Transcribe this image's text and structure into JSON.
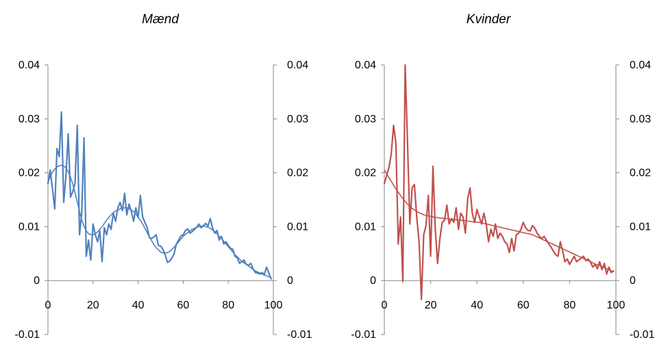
{
  "chart_data": [
    {
      "type": "line",
      "title": "Mænd",
      "xlabel": "",
      "ylabel": "",
      "xlim": [
        0,
        100
      ],
      "ylim": [
        -0.01,
        0.04
      ],
      "x_ticks": [
        "0",
        "20",
        "40",
        "60",
        "80",
        "100"
      ],
      "y_ticks": [
        "-0.01",
        "0",
        "0.01",
        "0.02",
        "0.03",
        "0.04"
      ],
      "secondary_y_ticks": [
        "-0.01",
        "0",
        "0.01",
        "0.02",
        "0.03",
        "0.04"
      ],
      "grid": false,
      "color": "#4F81BD",
      "series": [
        {
          "x": [
            0,
            1,
            2,
            3,
            4,
            5,
            6,
            7,
            8,
            9,
            10,
            11,
            12,
            13,
            14,
            15,
            16,
            17,
            18,
            19,
            20,
            21,
            22,
            23,
            24,
            25,
            26,
            27,
            28,
            29,
            30,
            31,
            32,
            33,
            34,
            35,
            36,
            37,
            38,
            39,
            40,
            41,
            42,
            43,
            44,
            45,
            46,
            47,
            48,
            49,
            50,
            51,
            52,
            53,
            54,
            55,
            56,
            57,
            58,
            59,
            60,
            61,
            62,
            63,
            64,
            65,
            66,
            67,
            68,
            69,
            70,
            71,
            72,
            73,
            74,
            75,
            76,
            77,
            78,
            79,
            80,
            81,
            82,
            83,
            84,
            85,
            86,
            87,
            88,
            89,
            90,
            91,
            92,
            93,
            94,
            95,
            96,
            97,
            98,
            99
          ],
          "values": [
            0.018,
            0.0205,
            0.017,
            0.0133,
            0.0245,
            0.023,
            0.0313,
            0.0145,
            0.0195,
            0.0272,
            0.0155,
            0.0165,
            0.018,
            0.0288,
            0.0085,
            0.0125,
            0.0265,
            0.0045,
            0.0075,
            0.0038,
            0.0105,
            0.0085,
            0.0072,
            0.0092,
            0.0035,
            0.0098,
            0.0085,
            0.0105,
            0.0095,
            0.0125,
            0.011,
            0.0135,
            0.0145,
            0.013,
            0.0162,
            0.0122,
            0.0142,
            0.0128,
            0.011,
            0.0135,
            0.0117,
            0.0158,
            0.0118,
            0.0108,
            0.0098,
            0.008,
            0.0078,
            0.0081,
            0.0085,
            0.0065,
            0.0064,
            0.0058,
            0.0048,
            0.0034,
            0.0036,
            0.0042,
            0.005,
            0.0068,
            0.0075,
            0.0083,
            0.0085,
            0.0093,
            0.0096,
            0.0088,
            0.0091,
            0.0095,
            0.0099,
            0.0105,
            0.0098,
            0.0102,
            0.0106,
            0.0101,
            0.0115,
            0.0098,
            0.0088,
            0.0093,
            0.0075,
            0.0082,
            0.0068,
            0.0072,
            0.0065,
            0.006,
            0.0058,
            0.0045,
            0.0042,
            0.0032,
            0.0035,
            0.0038,
            0.003,
            0.0028,
            0.0032,
            0.0022,
            0.0015,
            0.0014,
            0.0012,
            0.0015,
            0.0011,
            0.0025,
            0.0014,
            0.0003
          ]
        },
        {
          "x": [
            0,
            1,
            2,
            3,
            4,
            5,
            6,
            7,
            8,
            9,
            10,
            11,
            12,
            13,
            14,
            15,
            16,
            17,
            18,
            19,
            20,
            21,
            22,
            23,
            24,
            25,
            26,
            27,
            28,
            29,
            30,
            31,
            32,
            33,
            34,
            35,
            36,
            37,
            38,
            39,
            40,
            41,
            42,
            43,
            44,
            45,
            46,
            47,
            48,
            49,
            50,
            51,
            52,
            53,
            54,
            55,
            56,
            57,
            58,
            59,
            60,
            61,
            62,
            63,
            64,
            65,
            66,
            67,
            68,
            69,
            70,
            71,
            72,
            73,
            74,
            75,
            76,
            77,
            78,
            79,
            80,
            81,
            82,
            83,
            84,
            85,
            86,
            87,
            88,
            89,
            90,
            91,
            92,
            93,
            94,
            95,
            96,
            97,
            98,
            99
          ],
          "values": [
            0.0182,
            0.0193,
            0.0201,
            0.0207,
            0.0211,
            0.0213,
            0.0214,
            0.0213,
            0.0209,
            0.0202,
            0.0192,
            0.0179,
            0.0163,
            0.0146,
            0.0128,
            0.0113,
            0.0101,
            0.0092,
            0.0087,
            0.0085,
            0.0085,
            0.0087,
            0.009,
            0.0095,
            0.01,
            0.0106,
            0.0112,
            0.0117,
            0.0122,
            0.0126,
            0.0129,
            0.0131,
            0.0133,
            0.0134,
            0.0135,
            0.0135,
            0.0134,
            0.0131,
            0.0128,
            0.0123,
            0.0118,
            0.0112,
            0.0105,
            0.0097,
            0.0089,
            0.0081,
            0.0074,
            0.0067,
            0.0061,
            0.0057,
            0.0053,
            0.0051,
            0.0051,
            0.0052,
            0.0054,
            0.0058,
            0.0062,
            0.0067,
            0.0072,
            0.0077,
            0.0082,
            0.0086,
            0.0089,
            0.0092,
            0.0095,
            0.0097,
            0.0099,
            0.01,
            0.0101,
            0.0101,
            0.01,
            0.0099,
            0.0097,
            0.0094,
            0.0091,
            0.0087,
            0.0082,
            0.0078,
            0.0073,
            0.0068,
            0.0063,
            0.0058,
            0.0053,
            0.0048,
            0.0044,
            0.004,
            0.0036,
            0.0033,
            0.003,
            0.0027,
            0.0024,
            0.0021,
            0.0018,
            0.0016,
            0.0014,
            0.0012,
            0.001,
            0.0009,
            0.0007,
            0.0006
          ]
        }
      ]
    },
    {
      "type": "line",
      "title": "Kvinder",
      "xlabel": "",
      "ylabel": "",
      "xlim": [
        0,
        100
      ],
      "ylim": [
        -0.01,
        0.04
      ],
      "x_ticks": [
        "0",
        "20",
        "40",
        "60",
        "80",
        "100"
      ],
      "y_ticks": [
        "-0.01",
        "0",
        "0.01",
        "0.02",
        "0.03",
        "0.04"
      ],
      "secondary_y_ticks": [
        "-0.01",
        "0",
        "0.01",
        "0.02",
        "0.03",
        "0.04"
      ],
      "grid": false,
      "color": "#C0504D",
      "series": [
        {
          "x": [
            0,
            1,
            2,
            3,
            4,
            5,
            6,
            7,
            8,
            9,
            10,
            11,
            12,
            13,
            14,
            15,
            16,
            17,
            18,
            19,
            20,
            21,
            22,
            23,
            24,
            25,
            26,
            27,
            28,
            29,
            30,
            31,
            32,
            33,
            34,
            35,
            36,
            37,
            38,
            39,
            40,
            41,
            42,
            43,
            44,
            45,
            46,
            47,
            48,
            49,
            50,
            51,
            52,
            53,
            54,
            55,
            56,
            57,
            58,
            59,
            60,
            61,
            62,
            63,
            64,
            65,
            66,
            67,
            68,
            69,
            70,
            71,
            72,
            73,
            74,
            75,
            76,
            77,
            78,
            79,
            80,
            81,
            82,
            83,
            84,
            85,
            86,
            87,
            88,
            89,
            90,
            91,
            92,
            93,
            94,
            95,
            96,
            97,
            98,
            99
          ],
          "values": [
            0.018,
            0.0195,
            0.021,
            0.0235,
            0.0288,
            0.0255,
            0.0068,
            0.0118,
            -0.0002,
            0.04,
            0.0258,
            0.0105,
            0.0172,
            0.0178,
            0.0118,
            0.0072,
            -0.0035,
            0.0085,
            0.0102,
            0.0158,
            0.0045,
            0.0212,
            0.0095,
            0.0032,
            0.0078,
            0.0108,
            0.0112,
            0.014,
            0.0105,
            0.0115,
            0.0108,
            0.0135,
            0.0095,
            0.0125,
            0.0118,
            0.0088,
            0.0152,
            0.0172,
            0.0125,
            0.0108,
            0.0132,
            0.0118,
            0.0105,
            0.0125,
            0.0105,
            0.0072,
            0.0095,
            0.0082,
            0.0105,
            0.0078,
            0.0088,
            0.0082,
            0.0072,
            0.0068,
            0.0052,
            0.0078,
            0.0055,
            0.0085,
            0.0088,
            0.0095,
            0.0108,
            0.0098,
            0.0093,
            0.0092,
            0.0102,
            0.0097,
            0.0088,
            0.0082,
            0.0078,
            0.0082,
            0.0075,
            0.0068,
            0.0062,
            0.0055,
            0.0048,
            0.0045,
            0.0072,
            0.0055,
            0.0035,
            0.004,
            0.003,
            0.0038,
            0.0045,
            0.0035,
            0.0038,
            0.0042,
            0.0045,
            0.0037,
            0.004,
            0.0035,
            0.0025,
            0.003,
            0.0022,
            0.0035,
            0.002,
            0.0032,
            0.0012,
            0.0025,
            0.0015,
            0.0018
          ]
        },
        {
          "x": [
            0,
            1,
            2,
            3,
            4,
            5,
            6,
            7,
            8,
            9,
            10,
            11,
            12,
            13,
            14,
            15,
            16,
            17,
            18,
            19,
            20,
            21,
            22,
            23,
            24,
            25,
            26,
            27,
            28,
            29,
            30,
            31,
            32,
            33,
            34,
            35,
            36,
            37,
            38,
            39,
            40,
            41,
            42,
            43,
            44,
            45,
            46,
            47,
            48,
            49,
            50,
            51,
            52,
            53,
            54,
            55,
            56,
            57,
            58,
            59,
            60,
            61,
            62,
            63,
            64,
            65,
            66,
            67,
            68,
            69,
            70,
            71,
            72,
            73,
            74,
            75,
            76,
            77,
            78,
            79,
            80,
            81,
            82,
            83,
            84,
            85,
            86,
            87,
            88,
            89,
            90,
            91,
            92,
            93,
            94,
            95,
            96,
            97,
            98,
            99
          ],
          "values": [
            0.0205,
            0.0198,
            0.0191,
            0.0184,
            0.0177,
            0.017,
            0.0164,
            0.0158,
            0.0152,
            0.0147,
            0.0142,
            0.0138,
            0.0134,
            0.0131,
            0.0128,
            0.0126,
            0.0124,
            0.0122,
            0.0121,
            0.012,
            0.0119,
            0.0118,
            0.0117,
            0.0117,
            0.0116,
            0.0116,
            0.0115,
            0.0115,
            0.0114,
            0.0114,
            0.0113,
            0.0113,
            0.0112,
            0.0112,
            0.0111,
            0.0111,
            0.011,
            0.011,
            0.0109,
            0.0109,
            0.0108,
            0.0108,
            0.0107,
            0.0106,
            0.0105,
            0.0104,
            0.0103,
            0.0102,
            0.0101,
            0.01,
            0.0099,
            0.0098,
            0.0097,
            0.0096,
            0.0095,
            0.0094,
            0.0093,
            0.0092,
            0.0091,
            0.009,
            0.0089,
            0.0088,
            0.0087,
            0.0086,
            0.0085,
            0.0083,
            0.0081,
            0.0079,
            0.0077,
            0.0075,
            0.0073,
            0.0071,
            0.0069,
            0.0067,
            0.0065,
            0.0063,
            0.0061,
            0.0059,
            0.0057,
            0.0055,
            0.0053,
            0.0051,
            0.0049,
            0.0047,
            0.0045,
            0.0043,
            0.0041,
            0.0039,
            0.0037,
            0.0035,
            0.0033,
            0.0031,
            0.0029,
            0.0028,
            0.0026,
            0.0024,
            0.0022,
            0.002,
            0.0018,
            0.0017
          ]
        }
      ]
    }
  ]
}
